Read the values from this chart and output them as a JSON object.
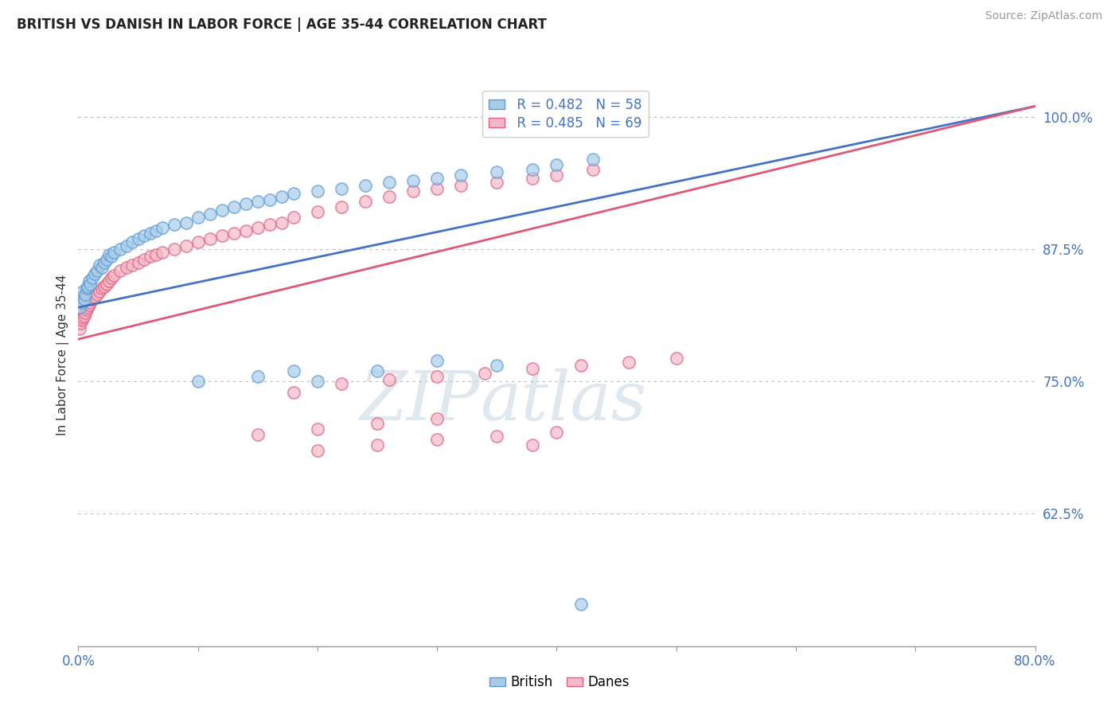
{
  "title": "BRITISH VS DANISH IN LABOR FORCE | AGE 35-44 CORRELATION CHART",
  "source": "Source: ZipAtlas.com",
  "ylabel": "In Labor Force | Age 35-44",
  "xlim": [
    0.0,
    0.8
  ],
  "ylim": [
    0.5,
    1.05
  ],
  "xtick_positions": [
    0.0,
    0.1,
    0.2,
    0.3,
    0.4,
    0.5,
    0.6,
    0.7,
    0.8
  ],
  "xticklabels": [
    "0.0%",
    "",
    "",
    "",
    "",
    "",
    "",
    "",
    "80.0%"
  ],
  "yticks_right": [
    0.625,
    0.75,
    0.875,
    1.0
  ],
  "ytick_right_labels": [
    "62.5%",
    "75.0%",
    "87.5%",
    "100.0%"
  ],
  "british_R": 0.482,
  "british_N": 58,
  "danish_R": 0.485,
  "danish_N": 69,
  "british_color": "#a8cce8",
  "danish_color": "#f4b8c8",
  "british_edge_color": "#5b9bd5",
  "danish_edge_color": "#e06080",
  "british_line_color": "#4472c4",
  "danish_line_color": "#e05878",
  "background_color": "#ffffff",
  "dotted_line_color": "#bbbbbb",
  "watermark_zip_color": "#c8d8e8",
  "watermark_atlas_color": "#b8c8e0",
  "british_x": [
    0.001,
    0.002,
    0.003,
    0.004,
    0.005,
    0.006,
    0.007,
    0.008,
    0.009,
    0.01,
    0.012,
    0.014,
    0.016,
    0.018,
    0.02,
    0.022,
    0.024,
    0.026,
    0.028,
    0.03,
    0.035,
    0.04,
    0.045,
    0.05,
    0.055,
    0.06,
    0.065,
    0.07,
    0.08,
    0.09,
    0.1,
    0.11,
    0.12,
    0.13,
    0.14,
    0.15,
    0.16,
    0.17,
    0.18,
    0.2,
    0.22,
    0.24,
    0.26,
    0.28,
    0.3,
    0.32,
    0.35,
    0.38,
    0.4,
    0.43,
    0.18,
    0.2,
    0.25,
    0.3,
    0.35,
    0.15,
    0.1,
    0.42
  ],
  "british_y": [
    0.82,
    0.83,
    0.825,
    0.835,
    0.828,
    0.832,
    0.838,
    0.84,
    0.845,
    0.842,
    0.848,
    0.852,
    0.855,
    0.86,
    0.858,
    0.862,
    0.865,
    0.87,
    0.868,
    0.872,
    0.875,
    0.878,
    0.882,
    0.885,
    0.888,
    0.89,
    0.892,
    0.895,
    0.898,
    0.9,
    0.905,
    0.908,
    0.912,
    0.915,
    0.918,
    0.92,
    0.922,
    0.925,
    0.928,
    0.93,
    0.932,
    0.935,
    0.938,
    0.94,
    0.942,
    0.945,
    0.948,
    0.95,
    0.955,
    0.96,
    0.76,
    0.75,
    0.76,
    0.77,
    0.765,
    0.755,
    0.75,
    0.54
  ],
  "danish_x": [
    0.001,
    0.002,
    0.003,
    0.004,
    0.005,
    0.006,
    0.007,
    0.008,
    0.009,
    0.01,
    0.012,
    0.014,
    0.016,
    0.018,
    0.02,
    0.022,
    0.024,
    0.026,
    0.028,
    0.03,
    0.035,
    0.04,
    0.045,
    0.05,
    0.055,
    0.06,
    0.065,
    0.07,
    0.08,
    0.09,
    0.1,
    0.11,
    0.12,
    0.13,
    0.14,
    0.15,
    0.16,
    0.17,
    0.18,
    0.2,
    0.22,
    0.24,
    0.26,
    0.28,
    0.3,
    0.32,
    0.35,
    0.38,
    0.4,
    0.43,
    0.18,
    0.22,
    0.26,
    0.3,
    0.34,
    0.38,
    0.42,
    0.46,
    0.5,
    0.15,
    0.2,
    0.25,
    0.3,
    0.2,
    0.25,
    0.3,
    0.35,
    0.4,
    0.38
  ],
  "danish_y": [
    0.8,
    0.805,
    0.808,
    0.81,
    0.812,
    0.815,
    0.818,
    0.82,
    0.822,
    0.825,
    0.828,
    0.83,
    0.832,
    0.835,
    0.838,
    0.84,
    0.842,
    0.845,
    0.848,
    0.85,
    0.855,
    0.858,
    0.86,
    0.862,
    0.865,
    0.868,
    0.87,
    0.872,
    0.875,
    0.878,
    0.882,
    0.885,
    0.888,
    0.89,
    0.892,
    0.895,
    0.898,
    0.9,
    0.905,
    0.91,
    0.915,
    0.92,
    0.925,
    0.93,
    0.932,
    0.935,
    0.938,
    0.942,
    0.945,
    0.95,
    0.74,
    0.748,
    0.752,
    0.755,
    0.758,
    0.762,
    0.765,
    0.768,
    0.772,
    0.7,
    0.705,
    0.71,
    0.715,
    0.685,
    0.69,
    0.695,
    0.698,
    0.702,
    0.69
  ]
}
